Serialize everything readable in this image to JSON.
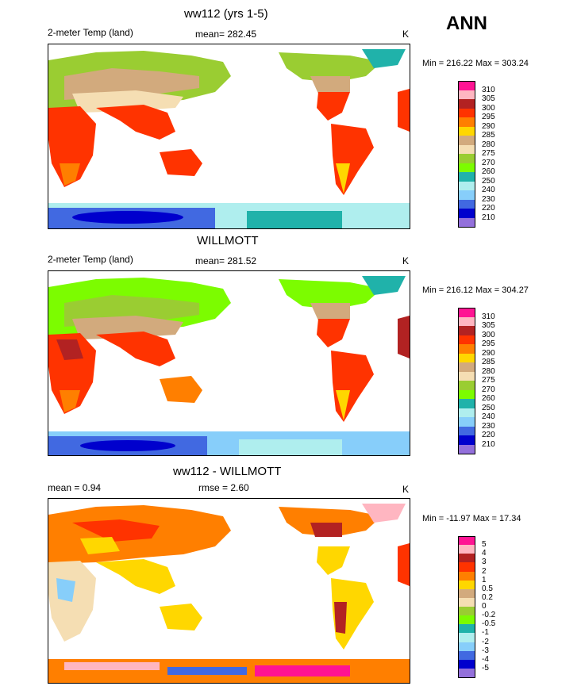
{
  "season": "ANN",
  "panels": [
    {
      "title": "ww112 (yrs 1-5)",
      "left_label": "2-meter Temp (land)",
      "center_label": "mean= 282.45",
      "units": "K",
      "minmax": "Min = 216.22 Max = 303.24",
      "legend": {
        "labels": [
          "310",
          "305",
          "300",
          "295",
          "290",
          "285",
          "280",
          "275",
          "270",
          "260",
          "250",
          "240",
          "230",
          "220",
          "210"
        ],
        "colors": [
          "#ff1493",
          "#ffb6c1",
          "#b22222",
          "#ff3300",
          "#ff7f00",
          "#ffd700",
          "#d2aa7d",
          "#f5deb3",
          "#9acd32",
          "#7cfc00",
          "#20b2aa",
          "#afeeee",
          "#87cefa",
          "#4169e1",
          "#0000cd",
          "#9370db"
        ]
      }
    },
    {
      "title": "WILLMOTT",
      "left_label": "2-meter Temp (land)",
      "center_label": "mean= 281.52",
      "units": "K",
      "minmax": "Min = 216.12 Max = 304.27",
      "legend": {
        "labels": [
          "310",
          "305",
          "300",
          "295",
          "290",
          "285",
          "280",
          "275",
          "270",
          "260",
          "250",
          "240",
          "230",
          "220",
          "210"
        ],
        "colors": [
          "#ff1493",
          "#ffb6c1",
          "#b22222",
          "#ff3300",
          "#ff7f00",
          "#ffd700",
          "#d2aa7d",
          "#f5deb3",
          "#9acd32",
          "#7cfc00",
          "#20b2aa",
          "#afeeee",
          "#87cefa",
          "#4169e1",
          "#0000cd",
          "#9370db"
        ]
      }
    },
    {
      "title": "ww112 - WILLMOTT",
      "left_label": "mean =   0.94",
      "center_label": "rmse =   2.60",
      "units": "K",
      "minmax": "Min = -11.97 Max =  17.34",
      "legend": {
        "labels": [
          "5",
          "4",
          "3",
          "2",
          "1",
          "0.5",
          "0.2",
          "0",
          "-0.2",
          "-0.5",
          "-1",
          "-2",
          "-3",
          "-4",
          "-5"
        ],
        "colors": [
          "#ff1493",
          "#ffb6c1",
          "#b22222",
          "#ff3300",
          "#ff7f00",
          "#ffd700",
          "#d2aa7d",
          "#f5deb3",
          "#9acd32",
          "#7cfc00",
          "#20b2aa",
          "#afeeee",
          "#87cefa",
          "#4169e1",
          "#0000cd",
          "#9370db"
        ]
      }
    }
  ]
}
